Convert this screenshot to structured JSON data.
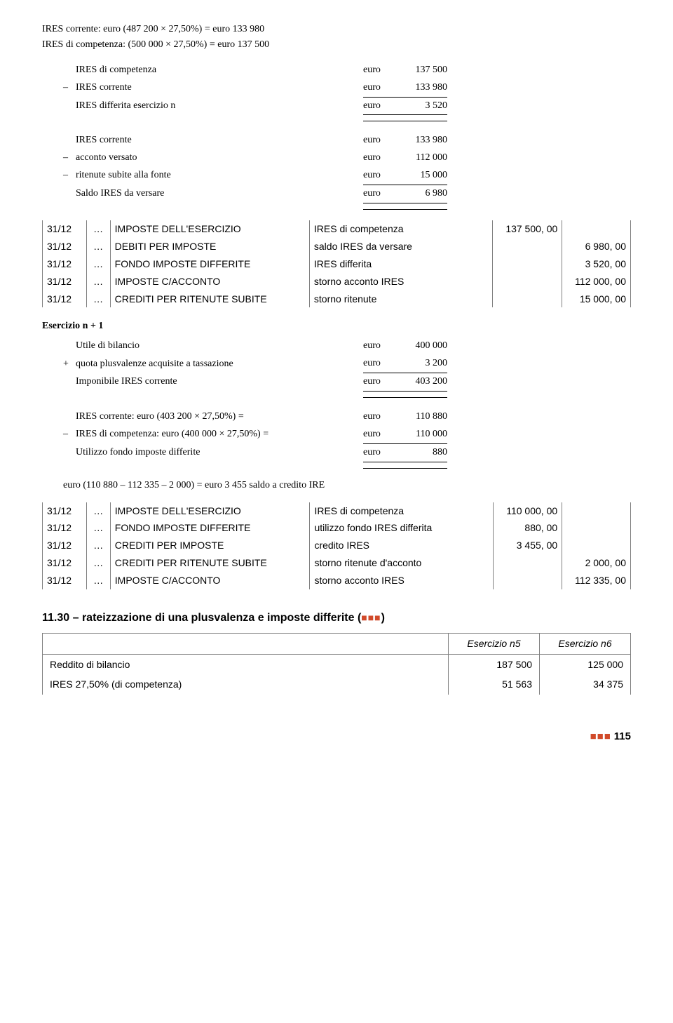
{
  "intro": {
    "line1": "IRES corrente: euro (487 200 × 27,50%) = euro 133 980",
    "line2": "IRES di competenza: (500 000 × 27,50%) = euro 137 500"
  },
  "calc1": {
    "rows": [
      {
        "sign": "",
        "label": "IRES di competenza",
        "cur": "euro",
        "val": "137 500"
      },
      {
        "sign": "–",
        "label": "IRES corrente",
        "cur": "euro",
        "val": "133 980"
      }
    ],
    "sum": {
      "sign": "",
      "label": "IRES differita esercizio n",
      "cur": "euro",
      "val": "3 520"
    }
  },
  "calc2": {
    "rows": [
      {
        "sign": "",
        "label": "IRES corrente",
        "cur": "euro",
        "val": "133 980"
      },
      {
        "sign": "–",
        "label": "acconto versato",
        "cur": "euro",
        "val": "112 000"
      },
      {
        "sign": "–",
        "label": "ritenute subite alla fonte",
        "cur": "euro",
        "val": "15 000"
      }
    ],
    "sum": {
      "sign": "",
      "label": "Saldo IRES da versare",
      "cur": "euro",
      "val": "6 980"
    }
  },
  "jrn1": [
    {
      "date": "31/12",
      "acct": "IMPOSTE DELL'ESERCIZIO",
      "desc": "IRES di competenza",
      "d": "137 500, 00",
      "c": ""
    },
    {
      "date": "31/12",
      "acct": "DEBITI PER IMPOSTE",
      "desc": "saldo IRES da versare",
      "d": "",
      "c": "6 980, 00"
    },
    {
      "date": "31/12",
      "acct": "FONDO IMPOSTE DIFFERITE",
      "desc": "IRES differita",
      "d": "",
      "c": "3 520, 00"
    },
    {
      "date": "31/12",
      "acct": "IMPOSTE C/ACCONTO",
      "desc": "storno acconto IRES",
      "d": "",
      "c": "112 000, 00"
    },
    {
      "date": "31/12",
      "acct": "CREDITI PER RITENUTE SUBITE",
      "desc": "storno ritenute",
      "d": "",
      "c": "15 000, 00"
    }
  ],
  "ex1": {
    "title": "Esercizio n + 1",
    "calcA": {
      "rows": [
        {
          "sign": "",
          "label": "Utile di bilancio",
          "cur": "euro",
          "val": "400 000"
        },
        {
          "sign": "+",
          "label": "quota plusvalenze acquisite a tassazione",
          "cur": "euro",
          "val": "3 200"
        }
      ],
      "sum": {
        "sign": "",
        "label": "Imponibile IRES corrente",
        "cur": "euro",
        "val": "403 200"
      }
    },
    "calcB": {
      "rows": [
        {
          "sign": "",
          "label": "IRES corrente: euro (403 200 × 27,50%) =",
          "cur": "euro",
          "val": "110 880"
        },
        {
          "sign": "–",
          "label": "IRES di competenza: euro (400 000 × 27,50%) =",
          "cur": "euro",
          "val": "110 000"
        }
      ],
      "sum": {
        "sign": "",
        "label": "Utilizzo fondo imposte differite",
        "cur": "euro",
        "val": "880"
      }
    },
    "credit_line": "euro (110 880 – 112 335 – 2 000) = euro 3 455     saldo a credito IRE"
  },
  "jrn2": [
    {
      "date": "31/12",
      "acct": "IMPOSTE DELL'ESERCIZIO",
      "desc": "IRES di competenza",
      "d": "110 000, 00",
      "c": ""
    },
    {
      "date": "31/12",
      "acct": "FONDO IMPOSTE DIFFERITE",
      "desc": "utilizzo fondo IRES differita",
      "d": "880, 00",
      "c": ""
    },
    {
      "date": "31/12",
      "acct": "CREDITI PER IMPOSTE",
      "desc": "credito IRES",
      "d": "3 455, 00",
      "c": ""
    },
    {
      "date": "31/12",
      "acct": "CREDITI PER RITENUTE SUBITE",
      "desc": "storno ritenute d'acconto",
      "d": "",
      "c": "2 000, 00"
    },
    {
      "date": "31/12",
      "acct": "IMPOSTE C/ACCONTO",
      "desc": "storno acconto IRES",
      "d": "",
      "c": "112 335, 00"
    }
  ],
  "section1130": {
    "title_num": "11.30",
    "title_text": "rateizzazione di una plusvalenza e imposte differite (",
    "title_close": ")"
  },
  "comp": {
    "headers": [
      "Esercizio n5",
      "Esercizio n6"
    ],
    "rows": [
      {
        "label": "Reddito di bilancio",
        "v1": "187 500",
        "v2": "125 000"
      },
      {
        "label": "IRES 27,50% (di competenza)",
        "v1": "51 563",
        "v2": "34 375"
      }
    ]
  },
  "footer": {
    "page": "115"
  }
}
